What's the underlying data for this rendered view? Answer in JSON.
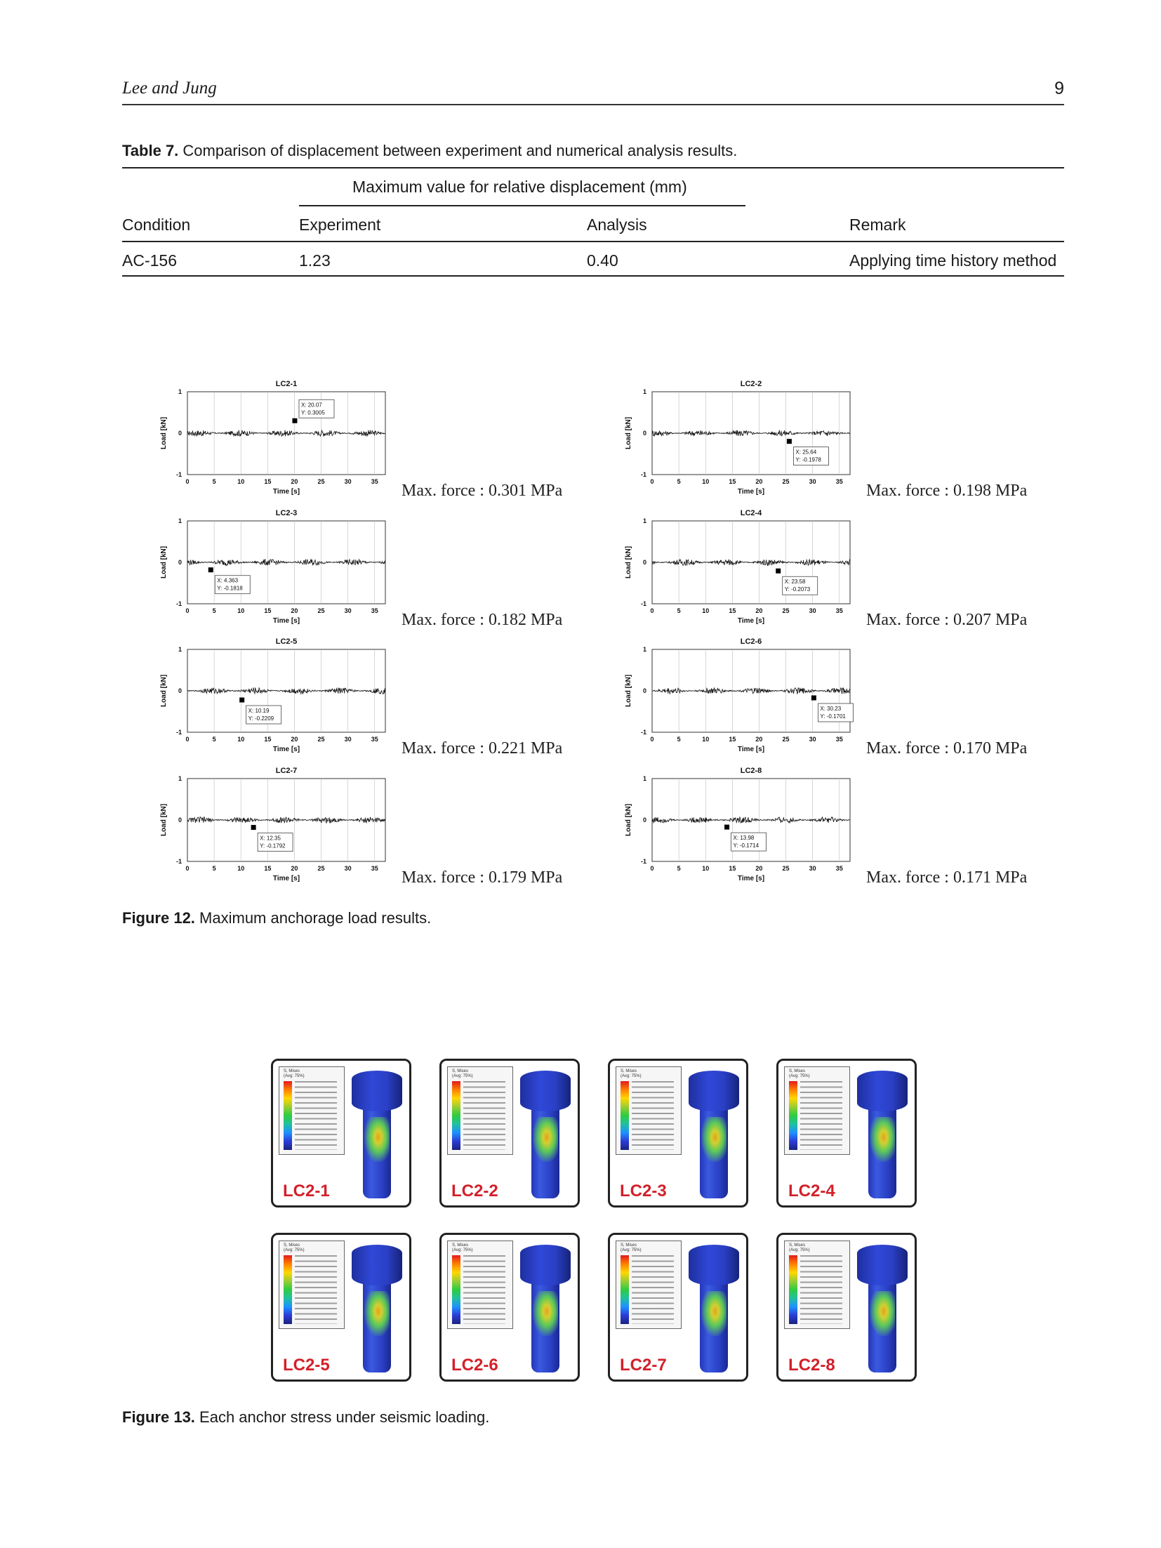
{
  "header": {
    "author": "Lee and Jung",
    "page": "9"
  },
  "table7": {
    "label": "Table 7.",
    "caption": "Comparison of displacement between experiment and numerical analysis results.",
    "group_header": "Maximum value for relative displacement (mm)",
    "columns": [
      "Condition",
      "Experiment",
      "Analysis",
      "Remark"
    ],
    "rows": [
      [
        "AC-156",
        "1.23",
        "0.40",
        "Applying time history method"
      ]
    ]
  },
  "chart_data": [
    {
      "type": "line",
      "title": "LC2-1",
      "xlabel": "Time [s]",
      "ylabel": "Load [kN]",
      "xlim": [
        0,
        37
      ],
      "ylim": [
        -1,
        1
      ],
      "grid": true,
      "xticks": [
        "0",
        "5",
        "10",
        "15",
        "20",
        "25",
        "30",
        "35"
      ],
      "yticks": [
        "1",
        "0",
        "-1"
      ],
      "marker": {
        "x": 20.07,
        "y": 0.3005,
        "label_x": "X: 20.07",
        "label_y": "Y: 0.3005"
      },
      "max_force": "Max. force : 0.301 MPa"
    },
    {
      "type": "line",
      "title": "LC2-2",
      "xlabel": "Time [s]",
      "ylabel": "Load [kN]",
      "xlim": [
        0,
        37
      ],
      "ylim": [
        -1,
        1
      ],
      "grid": true,
      "xticks": [
        "0",
        "5",
        "10",
        "15",
        "20",
        "25",
        "30",
        "35"
      ],
      "yticks": [
        "1",
        "0",
        "-1"
      ],
      "marker": {
        "x": 25.64,
        "y": -0.1978,
        "label_x": "X: 25.64",
        "label_y": "Y: -0.1978"
      },
      "max_force": "Max. force : 0.198 MPa"
    },
    {
      "type": "line",
      "title": "LC2-3",
      "xlabel": "Time [s]",
      "ylabel": "Load [kN]",
      "xlim": [
        0,
        37
      ],
      "ylim": [
        -1,
        1
      ],
      "grid": true,
      "xticks": [
        "0",
        "5",
        "10",
        "15",
        "20",
        "25",
        "30",
        "35"
      ],
      "yticks": [
        "1",
        "0",
        "-1"
      ],
      "marker": {
        "x": 4.363,
        "y": -0.1818,
        "label_x": "X: 4.363",
        "label_y": "Y: -0.1818"
      },
      "max_force": "Max. force : 0.182 MPa"
    },
    {
      "type": "line",
      "title": "LC2-4",
      "xlabel": "Time [s]",
      "ylabel": "Load [kN]",
      "xlim": [
        0,
        37
      ],
      "ylim": [
        -1,
        1
      ],
      "grid": true,
      "xticks": [
        "0",
        "5",
        "10",
        "15",
        "20",
        "25",
        "30",
        "35"
      ],
      "yticks": [
        "1",
        "0",
        "-1"
      ],
      "marker": {
        "x": 23.58,
        "y": -0.2073,
        "label_x": "X: 23.58",
        "label_y": "Y: -0.2073"
      },
      "max_force": "Max. force : 0.207 MPa"
    },
    {
      "type": "line",
      "title": "LC2-5",
      "xlabel": "Time [s]",
      "ylabel": "Load [kN]",
      "xlim": [
        0,
        37
      ],
      "ylim": [
        -1,
        1
      ],
      "grid": true,
      "xticks": [
        "0",
        "5",
        "10",
        "15",
        "20",
        "25",
        "30",
        "35"
      ],
      "yticks": [
        "1",
        "0",
        "-1"
      ],
      "marker": {
        "x": 10.19,
        "y": -0.2209,
        "label_x": "X: 10.19",
        "label_y": "Y: -0.2209"
      },
      "max_force": "Max. force : 0.221 MPa"
    },
    {
      "type": "line",
      "title": "LC2-6",
      "xlabel": "Time [s]",
      "ylabel": "Load [kN]",
      "xlim": [
        0,
        37
      ],
      "ylim": [
        -1,
        1
      ],
      "grid": true,
      "xticks": [
        "0",
        "5",
        "10",
        "15",
        "20",
        "25",
        "30",
        "35"
      ],
      "yticks": [
        "1",
        "0",
        "-1"
      ],
      "marker": {
        "x": 30.23,
        "y": -0.1701,
        "label_x": "X: 30.23",
        "label_y": "Y: -0.1701"
      },
      "max_force": "Max. force : 0.170 MPa"
    },
    {
      "type": "line",
      "title": "LC2-7",
      "xlabel": "Time [s]",
      "ylabel": "Load [kN]",
      "xlim": [
        0,
        37
      ],
      "ylim": [
        -1,
        1
      ],
      "grid": true,
      "xticks": [
        "0",
        "5",
        "10",
        "15",
        "20",
        "25",
        "30",
        "35"
      ],
      "yticks": [
        "1",
        "0",
        "-1"
      ],
      "marker": {
        "x": 12.35,
        "y": -0.1792,
        "label_x": "X: 12.35",
        "label_y": "Y: -0.1792"
      },
      "max_force": "Max. force : 0.179 MPa"
    },
    {
      "type": "line",
      "title": "LC2-8",
      "xlabel": "Time [s]",
      "ylabel": "Load [kN]",
      "xlim": [
        0,
        37
      ],
      "ylim": [
        -1,
        1
      ],
      "grid": true,
      "xticks": [
        "0",
        "5",
        "10",
        "15",
        "20",
        "25",
        "30",
        "35"
      ],
      "yticks": [
        "1",
        "0",
        "-1"
      ],
      "marker": {
        "x": 13.98,
        "y": -0.1714,
        "label_x": "X: 13.98",
        "label_y": "Y: -0.1714"
      },
      "max_force": "Max. force : 0.171 MPa"
    }
  ],
  "figure12": {
    "label": "Figure 12.",
    "caption": "Maximum anchorage load results."
  },
  "figure13": {
    "label": "Figure 13.",
    "caption": "Each anchor stress under seismic loading.",
    "legend_title_1": "S, Mises",
    "legend_title_2": "(Avg: 75%)",
    "panels": [
      "LC2-1",
      "LC2-2",
      "LC2-3",
      "LC2-4",
      "LC2-5",
      "LC2-6",
      "LC2-7",
      "LC2-8"
    ],
    "label_color": "#d3202a"
  }
}
